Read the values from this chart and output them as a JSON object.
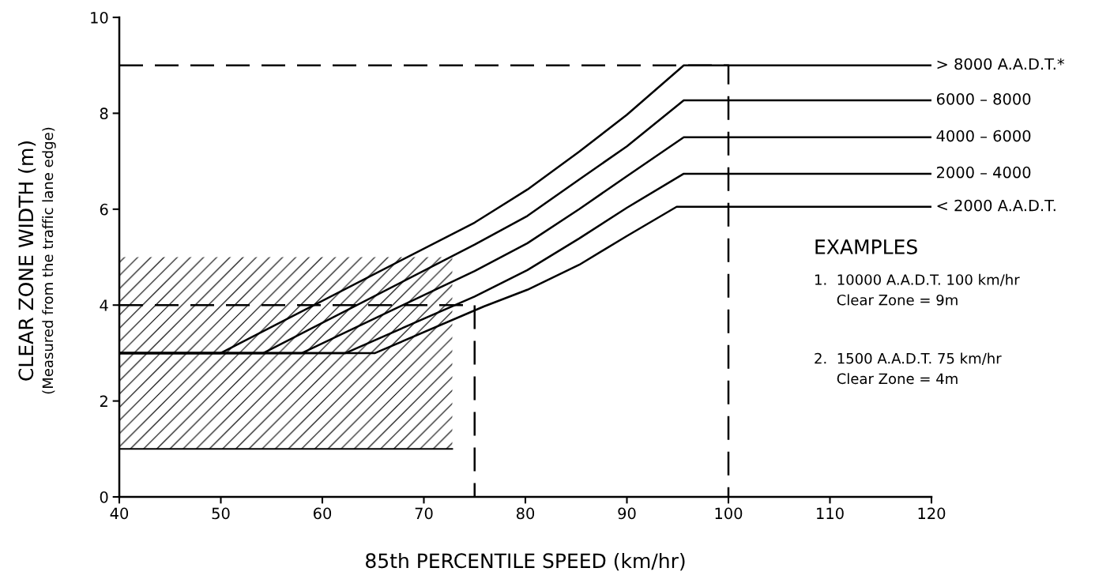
{
  "chart_data": {
    "type": "line",
    "xlabel": "85th PERCENTILE SPEED (km/hr)",
    "ylabel": "CLEAR ZONE WIDTH (m)\n(Measured from the traffic lane edge)",
    "xlim": [
      40,
      120
    ],
    "xticks": [
      40,
      50,
      60,
      70,
      80,
      90,
      100,
      110,
      120
    ],
    "ylim": [
      0,
      10
    ],
    "yticks": [
      0,
      2,
      4,
      6,
      8,
      10
    ],
    "grid": false,
    "legend": false,
    "marker": "none",
    "line_style": "solid",
    "series": [
      {
        "type": "line",
        "color": "#000000",
        "x": [
          40,
          72.8
        ],
        "values": [
          1,
          1
        ],
        "lower": [
          1,
          1
        ],
        "upper": [
          5,
          5
        ]
      },
      {
        "type": "line",
        "color": "#000000",
        "line_style": "dashed",
        "x": [
          40,
          100,
          100
        ],
        "values": [
          9,
          9,
          0
        ]
      },
      {
        "type": "line",
        "color": "#000000",
        "line_style": "dashed",
        "x": [
          40,
          75,
          75
        ],
        "values": [
          4,
          4,
          0
        ]
      },
      {
        "name": "> 8000 A.A.D.T.*",
        "color": "#000000",
        "x": [
          40,
          50,
          75,
          80.2,
          85.3,
          90,
          95.6,
          120
        ],
        "values": [
          3,
          3,
          5.72,
          6.41,
          7.2,
          7.97,
          9,
          9
        ]
      },
      {
        "name": "6000 – 8000",
        "color": "#000000",
        "x": [
          40,
          54.2,
          75,
          80.2,
          85.3,
          90,
          95.6,
          120
        ],
        "values": [
          3,
          3,
          5.26,
          5.86,
          6.62,
          7.31,
          8.27,
          8.27
        ]
      },
      {
        "name": "4000 – 6000",
        "color": "#000000",
        "x": [
          40,
          58,
          75,
          80.2,
          85.3,
          90,
          95.6,
          120
        ],
        "values": [
          3,
          3,
          4.71,
          5.29,
          6,
          6.69,
          7.5,
          7.5
        ]
      },
      {
        "name": "2000 – 4000",
        "color": "#000000",
        "x": [
          40,
          62.3,
          75,
          80.2,
          85.3,
          90,
          95.6,
          120
        ],
        "values": [
          3,
          3,
          4.18,
          4.73,
          5.39,
          6.03,
          6.74,
          6.74
        ]
      },
      {
        "name": "< 2000 A.A.D.T.",
        "color": "#000000",
        "x": [
          40,
          65.2,
          75.9,
          80.2,
          85.3,
          90,
          94.9,
          120
        ],
        "values": [
          3,
          3,
          3.97,
          4.32,
          4.84,
          5.44,
          6.05,
          6.05
        ]
      }
    ],
    "annotations": [
      "EXAMPLES",
      "1.  10000 A.A.D.T. 100 km/hr\n     Clear Zone = 9m",
      "2.  1500 A.A.D.T. 75 km/hr\n     Clear Zone = 4m"
    ]
  }
}
